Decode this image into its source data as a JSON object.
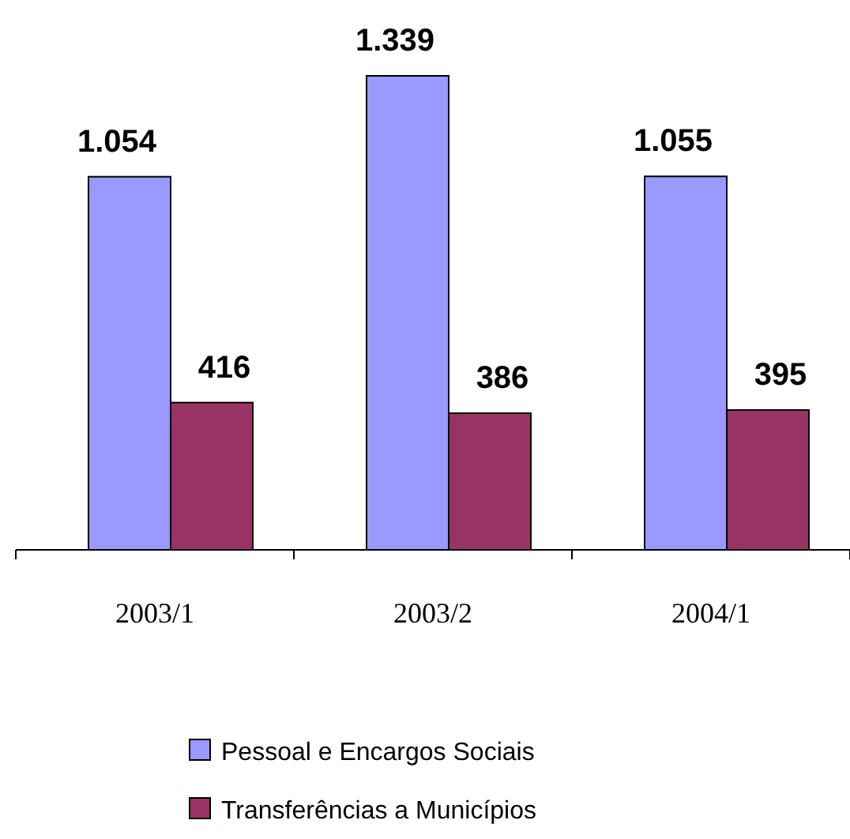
{
  "chart_data": {
    "type": "bar",
    "categories": [
      "2003/1",
      "2003/2",
      "2004/1"
    ],
    "series": [
      {
        "name": "Pessoal e Encargos Sociais",
        "color": "#9999ff",
        "values": [
          1054,
          1339,
          1055
        ],
        "value_labels": [
          "1.054",
          "1.339",
          "1.055"
        ]
      },
      {
        "name": "Transferências a Municípios",
        "color": "#993366",
        "values": [
          416,
          386,
          395
        ],
        "value_labels": [
          "416",
          "386",
          "395"
        ]
      }
    ],
    "legend": "bottom"
  }
}
